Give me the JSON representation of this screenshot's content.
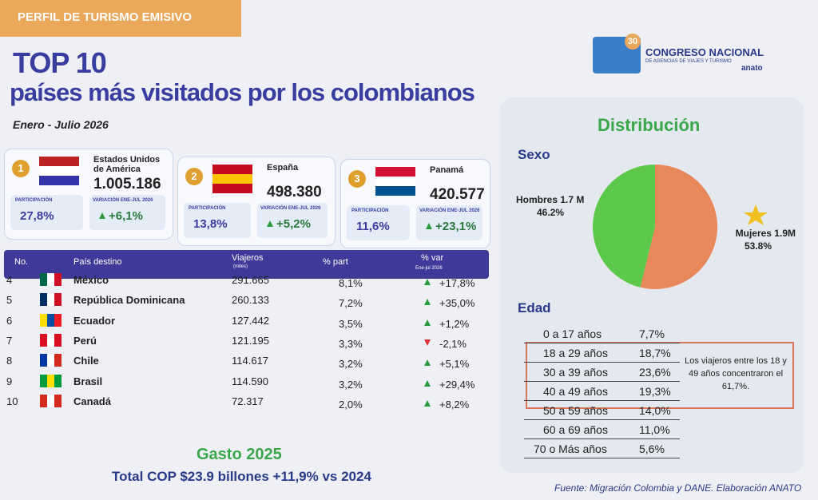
{
  "header": {
    "tab": "PERFIL DE TURISMO EMISIVO",
    "title": "TOP 10",
    "subtitle": "países más visitados por los colombianos",
    "period": "Enero - Julio 2026"
  },
  "logo": {
    "badge": "30",
    "name": "CONGRESO NACIONAL",
    "tagline": "DE AGENCIAS DE VIAJES Y TURISMO",
    "brand": "anato"
  },
  "top3": [
    {
      "rank": "1",
      "country": "Estados Unidos de América",
      "travelers": "1.005.186",
      "share_label": "PARTICIPACIÓN",
      "share": "27,8%",
      "change_label": "VARIACIÓN ENE-JUL 2026",
      "change": "+6,1%"
    },
    {
      "rank": "2",
      "country": "España",
      "travelers": "498.380",
      "share_label": "PARTICIPACIÓN",
      "share": "13,8%",
      "change_label": "VARIACIÓN ENE-JUL 2026",
      "change": "+5,2%"
    },
    {
      "rank": "3",
      "country": "Panamá",
      "travelers": "420.577",
      "share_label": "PARTICIPACIÓN",
      "share": "11,6%",
      "change_label": "VARIACIÓN ENE-JUL 2026",
      "change": "+23,1%"
    }
  ],
  "table": {
    "columns": [
      "No.",
      "País destino",
      "Viajeros",
      "% part",
      "% var"
    ],
    "viajeros_unit": "(miles)",
    "var_period": "Ene-jul 2026",
    "rows": [
      [
        "4",
        "México",
        "291.665",
        "8,1%",
        "+17,8%"
      ],
      [
        "5",
        "República Dominicana",
        "260.133",
        "7,2%",
        "+35,0%"
      ],
      [
        "6",
        "Ecuador",
        "127.442",
        "3,5%",
        "+1,2%"
      ],
      [
        "7",
        "Perú",
        "121.195",
        "3,3%",
        "-2,1%"
      ],
      [
        "8",
        "Chile",
        "114.617",
        "3,2%",
        "+5,1%"
      ],
      [
        "9",
        "Brasil",
        "114.590",
        "3,2%",
        "+29,4%"
      ],
      [
        "10",
        "Canadá",
        "72.317",
        "2,0%",
        "+8,2%"
      ]
    ]
  },
  "distribution": {
    "title": "Distribución",
    "sex_label": "Sexo",
    "age_label": "Edad",
    "age_rows": [
      [
        "0 a 17 años",
        "7,7%"
      ],
      [
        "18 a 29 años",
        "18,7%"
      ],
      [
        "30 a 39 años",
        "23,6%"
      ],
      [
        "40 a 49 años",
        "19,3%"
      ],
      [
        "50 a 59 años",
        "14,0%"
      ],
      [
        "60 a 69 años",
        "11,0%"
      ],
      [
        "70 o Más años",
        "5,6%"
      ]
    ],
    "age_note": "Los viajeros entre los 18 y 49 años concentraron el 61,7%."
  },
  "chart_data": {
    "type": "pie",
    "categories": [
      "Hombres 1.7 M",
      "Mujeres 1.9M"
    ],
    "values": [
      46.2,
      53.8
    ],
    "value_labels": [
      "46.2%",
      "53.8%"
    ],
    "colors": [
      "#5cc94a",
      "#e8875a"
    ]
  },
  "footer": {
    "gasto_title": "Gasto 2025",
    "gasto_total": "Total COP $23.9 billones +11,9% vs 2024",
    "source": "Fuente: Migración Colombia y DANE. Elaboración ANATO"
  }
}
